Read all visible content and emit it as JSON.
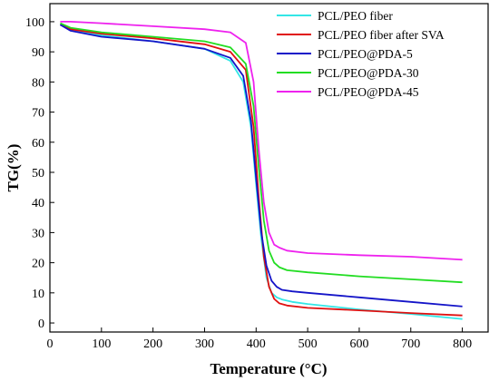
{
  "chart_data": {
    "type": "line",
    "title": "",
    "xlabel": "Temperature (°C)",
    "ylabel": "TG(%)",
    "xlim": [
      0,
      850
    ],
    "ylim": [
      -3,
      106
    ],
    "xticks": [
      0,
      100,
      200,
      300,
      400,
      500,
      600,
      700,
      800
    ],
    "yticks": [
      0,
      10,
      20,
      30,
      40,
      50,
      60,
      70,
      80,
      90,
      100
    ],
    "grid": false,
    "legend_position": "top-right",
    "series": [
      {
        "name": "PCL/PEO fiber",
        "color": "#33e6e6",
        "x": [
          20,
          40,
          100,
          200,
          300,
          350,
          375,
          390,
          400,
          410,
          420,
          430,
          440,
          450,
          470,
          500,
          600,
          700,
          800
        ],
        "y": [
          99,
          97.5,
          95.5,
          93.5,
          91,
          87,
          80,
          65,
          46,
          28,
          15,
          10,
          8.5,
          7.8,
          7,
          6.3,
          4.5,
          3,
          1.3
        ]
      },
      {
        "name": "PCL/PEO fiber after SVA",
        "color": "#e01010",
        "x": [
          20,
          40,
          100,
          200,
          300,
          350,
          380,
          395,
          405,
          415,
          425,
          435,
          445,
          460,
          500,
          600,
          700,
          800
        ],
        "y": [
          99,
          97.5,
          96,
          94.5,
          92.5,
          90,
          84,
          65,
          42,
          22,
          12,
          8,
          6.5,
          5.8,
          5,
          4.2,
          3.3,
          2.5
        ]
      },
      {
        "name": "PCL/PEO@PDA-5",
        "color": "#1414c8",
        "x": [
          20,
          40,
          100,
          200,
          300,
          350,
          375,
          390,
          400,
          410,
          420,
          430,
          440,
          450,
          470,
          500,
          600,
          700,
          800
        ],
        "y": [
          99,
          97,
          95,
          93.5,
          91,
          88,
          82,
          67,
          48,
          30,
          19,
          14,
          12,
          11,
          10.5,
          10,
          8.5,
          7,
          5.5
        ]
      },
      {
        "name": "PCL/PEO@PDA-30",
        "color": "#22dd22",
        "x": [
          20,
          40,
          100,
          200,
          300,
          350,
          380,
          395,
          405,
          415,
          425,
          435,
          445,
          460,
          500,
          600,
          700,
          800
        ],
        "y": [
          99.5,
          98,
          96.5,
          95,
          93.5,
          91.5,
          86,
          72,
          52,
          34,
          24,
          20,
          18.5,
          17.5,
          16.8,
          15.5,
          14.5,
          13.5
        ]
      },
      {
        "name": "PCL/PEO@PDA-45",
        "color": "#ee22ee",
        "x": [
          20,
          40,
          100,
          200,
          300,
          350,
          380,
          395,
          405,
          415,
          425,
          435,
          445,
          460,
          500,
          600,
          700,
          800
        ],
        "y": [
          100,
          100,
          99.5,
          98.5,
          97.5,
          96.5,
          93,
          80,
          58,
          40,
          30,
          26,
          25,
          24,
          23.2,
          22.5,
          22,
          21
        ]
      }
    ]
  }
}
